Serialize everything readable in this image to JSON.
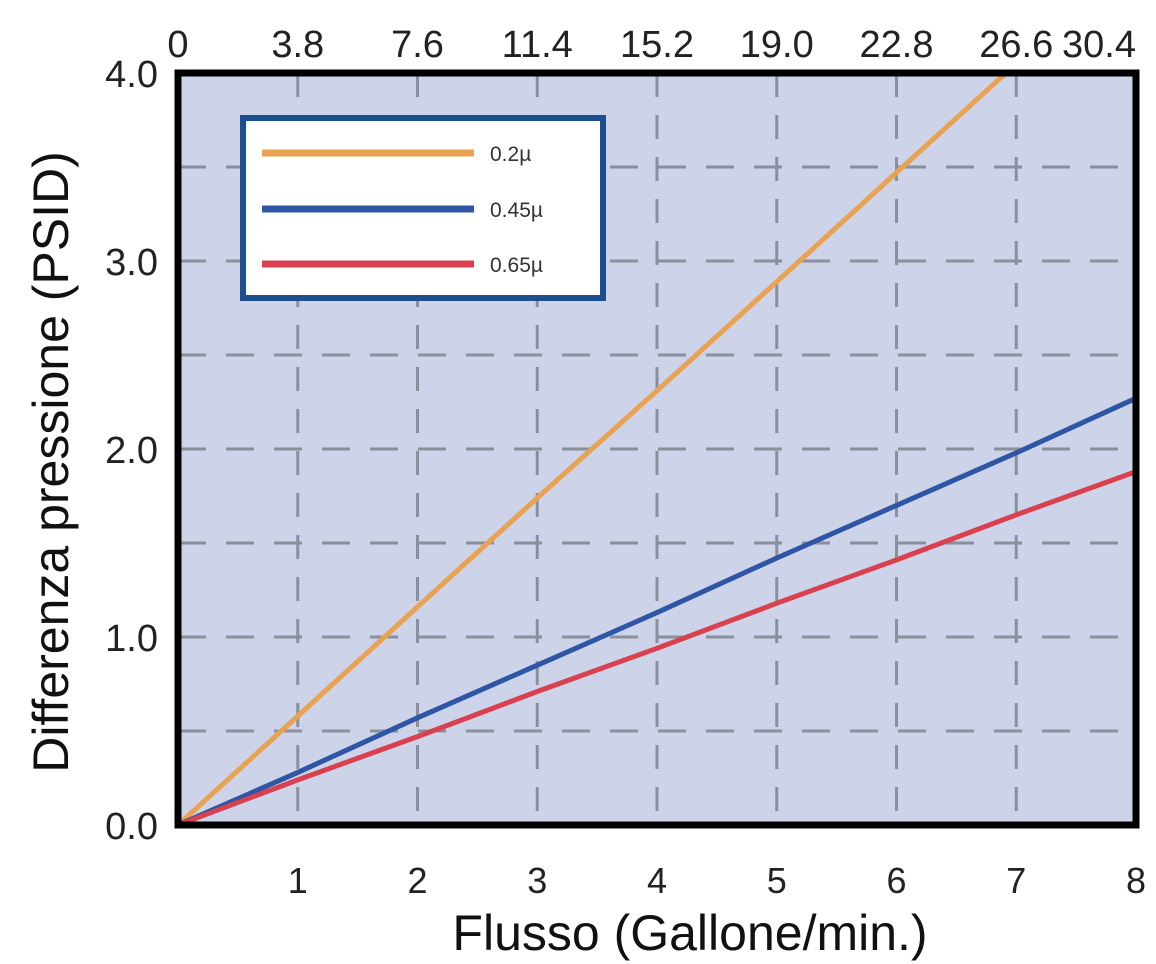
{
  "chart_data": {
    "type": "line",
    "title": "",
    "xlabel": "Flusso (Gallone/min.)",
    "ylabel": "Differenza pressione (PSID)",
    "xlim": [
      0,
      8
    ],
    "ylim": [
      0,
      4
    ],
    "x_ticks": [
      "1",
      "2",
      "3",
      "4",
      "5",
      "6",
      "7",
      "8"
    ],
    "y_ticks": [
      "0.0",
      "1.0",
      "2.0",
      "3.0",
      "4.0"
    ],
    "top_ticks": [
      "0",
      "3.8",
      "7.6",
      "11.4",
      "15.2",
      "19.0",
      "22.8",
      "26.6",
      "30.4"
    ],
    "grid": true,
    "legend_position": "top-left",
    "plot_background": "#cdd3e8",
    "series": [
      {
        "name": "0.2µ",
        "color": "#e7a352",
        "x": [
          0,
          1,
          2,
          3,
          4,
          5,
          6,
          7,
          8
        ],
        "y": [
          0,
          0.58,
          1.16,
          1.74,
          2.31,
          2.89,
          3.47,
          4.05,
          4.62
        ]
      },
      {
        "name": "0.45µ",
        "color": "#2e56a4",
        "x": [
          0,
          1,
          2,
          3,
          4,
          5,
          6,
          7,
          8
        ],
        "y": [
          0,
          0.28,
          0.57,
          0.85,
          1.13,
          1.42,
          1.7,
          1.98,
          2.27
        ]
      },
      {
        "name": "0.65µ",
        "color": "#d9414e",
        "x": [
          0,
          1,
          2,
          3,
          4,
          5,
          6,
          7,
          8
        ],
        "y": [
          0,
          0.24,
          0.47,
          0.71,
          0.94,
          1.18,
          1.41,
          1.65,
          1.88
        ]
      }
    ]
  }
}
